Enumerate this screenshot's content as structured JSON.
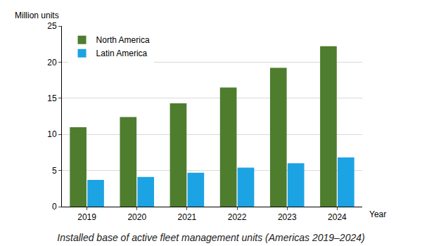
{
  "chart_data": {
    "type": "bar",
    "title": "Installed base of active fleet management units (Americas 2019–2024)",
    "x_label": "Year",
    "y_label": "Million units",
    "categories": [
      "2019",
      "2020",
      "2021",
      "2022",
      "2023",
      "2024"
    ],
    "series": [
      {
        "name": "North America",
        "color": "#4e7d2e",
        "values": [
          11.0,
          12.4,
          14.3,
          16.5,
          19.2,
          22.2
        ]
      },
      {
        "name": "Latin America",
        "color": "#1ca3e3",
        "values": [
          3.7,
          4.1,
          4.7,
          5.4,
          6.0,
          6.8
        ]
      }
    ],
    "ylim": [
      0,
      25
    ],
    "yticks": [
      0,
      5,
      10,
      15,
      20,
      25
    ],
    "grid": true,
    "legend": "upper left"
  }
}
